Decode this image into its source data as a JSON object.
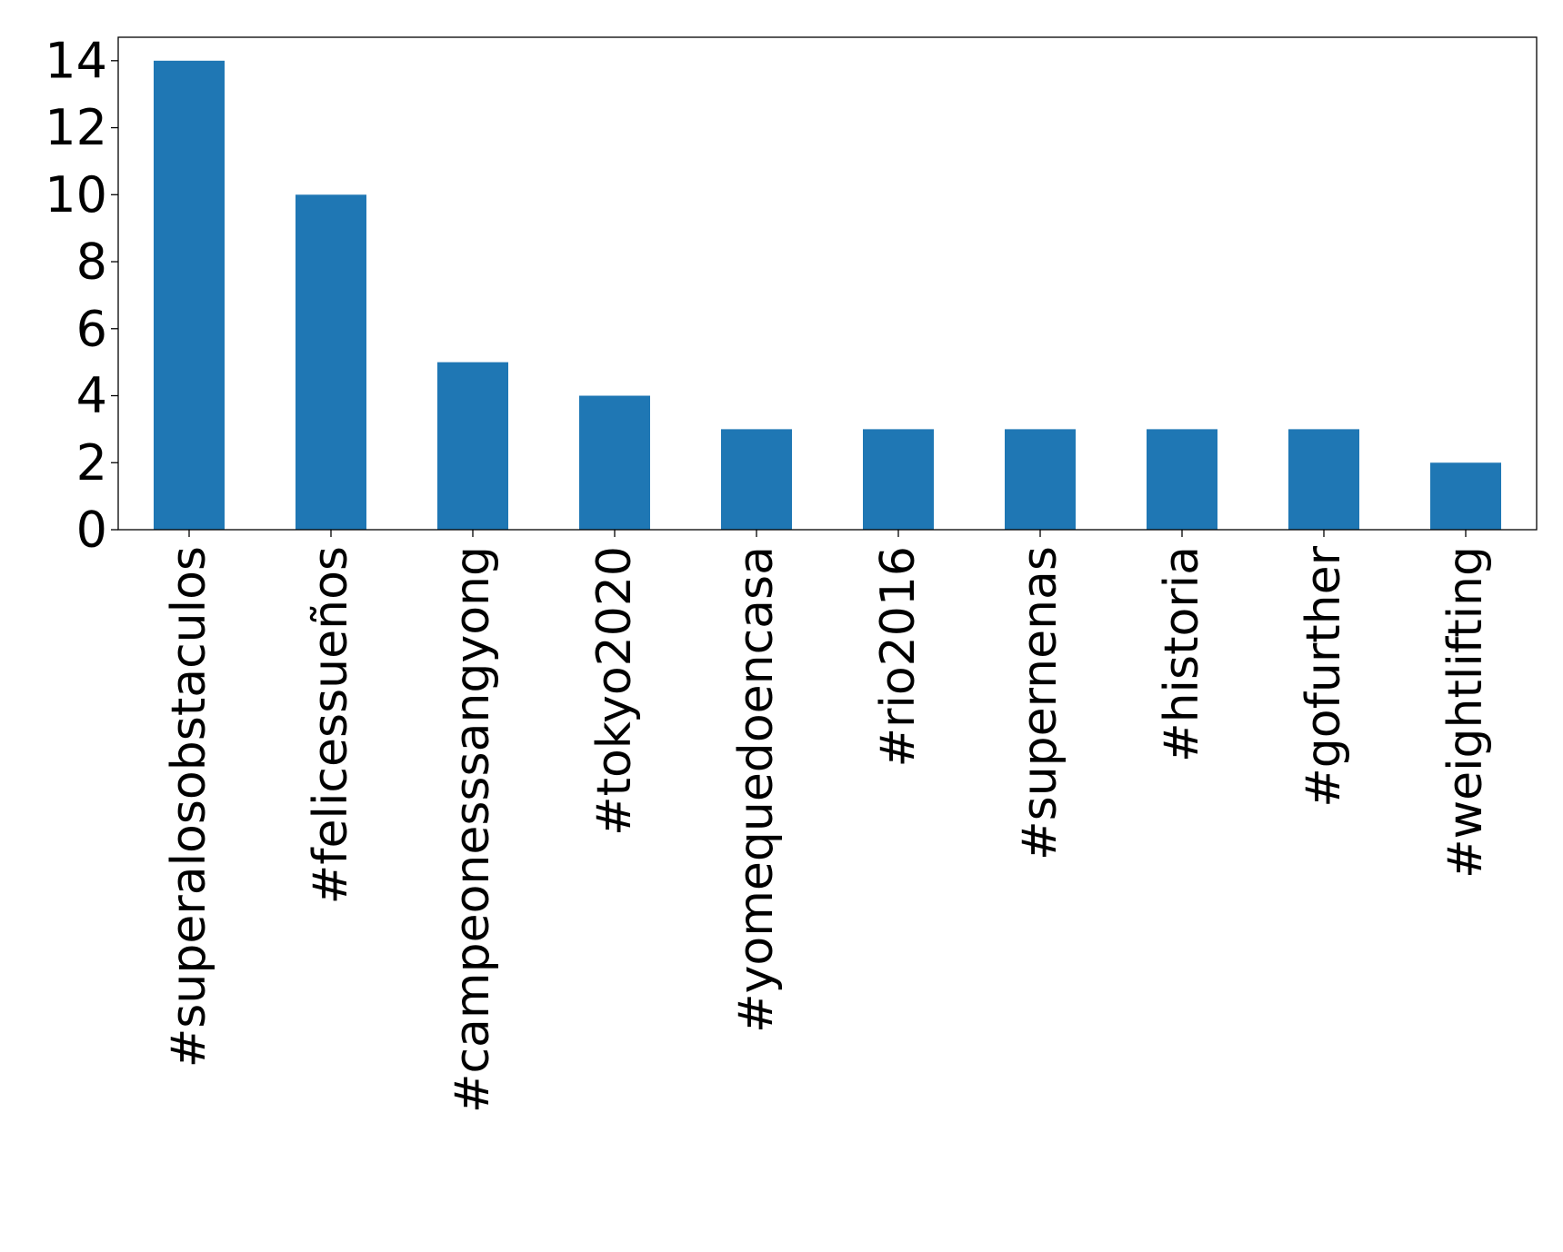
{
  "chart_data": {
    "type": "bar",
    "title": "",
    "xlabel": "",
    "ylabel": "",
    "categories": [
      "#superalosobstaculos",
      "#felicessueños",
      "#campeonesssangyong",
      "#tokyo2020",
      "#yomequedoencasa",
      "#rio2016",
      "#supernenas",
      "#historia",
      "#gofurther",
      "#weightlifting"
    ],
    "values": [
      14,
      10,
      5,
      4,
      3,
      3,
      3,
      3,
      3,
      2
    ],
    "ylim": [
      0,
      14.7
    ],
    "yticks": [
      0,
      2,
      4,
      6,
      8,
      10,
      12,
      14
    ],
    "bar_color": "#1f77b4",
    "grid": false,
    "legend": "none"
  }
}
